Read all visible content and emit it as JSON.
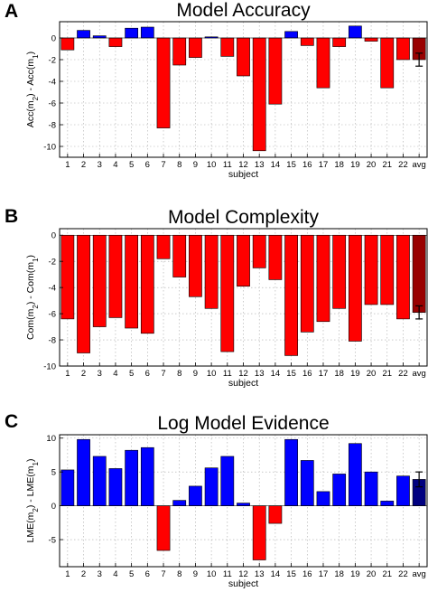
{
  "colors": {
    "positive": "#0000ff",
    "negative": "#ff0000",
    "average": "#000080",
    "average_negative": "#990000",
    "grid": "#aaaaaa"
  },
  "chart_data": [
    {
      "type": "bar",
      "panel_letter": "A",
      "title": "Model Accuracy",
      "xlabel": "subject",
      "ylabel": "Acc(m_2) - Acc(m_1)",
      "categories": [
        "1",
        "2",
        "3",
        "4",
        "5",
        "6",
        "7",
        "8",
        "9",
        "10",
        "11",
        "12",
        "13",
        "14",
        "15",
        "16",
        "17",
        "18",
        "19",
        "20",
        "21",
        "22",
        "avg"
      ],
      "values": [
        -1.1,
        0.7,
        0.2,
        -0.8,
        0.9,
        1.0,
        -8.3,
        -2.5,
        -1.8,
        0.1,
        -1.7,
        -3.5,
        -10.4,
        -6.1,
        0.6,
        -0.7,
        -4.6,
        -0.8,
        1.1,
        -0.3,
        -4.6,
        -2.0,
        -2.0
      ],
      "error": [
        0,
        0,
        0,
        0,
        0,
        0,
        0,
        0,
        0,
        0,
        0,
        0,
        0,
        0,
        0,
        0,
        0,
        0,
        0,
        0,
        0,
        0,
        0.6
      ],
      "ylim": [
        -11,
        1.5
      ],
      "yticks": [
        -10,
        -8,
        -6,
        -4,
        -2,
        0
      ],
      "grid": true
    },
    {
      "type": "bar",
      "panel_letter": "B",
      "title": "Model Complexity",
      "xlabel": "subject",
      "ylabel": "Com(m_2) - Com(m_1)",
      "categories": [
        "1",
        "2",
        "3",
        "4",
        "5",
        "6",
        "7",
        "8",
        "9",
        "10",
        "11",
        "12",
        "13",
        "14",
        "15",
        "16",
        "17",
        "18",
        "19",
        "20",
        "21",
        "22",
        "avg"
      ],
      "values": [
        -6.4,
        -9.0,
        -7.0,
        -6.3,
        -7.1,
        -7.5,
        -1.8,
        -3.2,
        -4.7,
        -5.6,
        -8.9,
        -3.9,
        -2.5,
        -3.4,
        -9.2,
        -7.4,
        -6.6,
        -5.6,
        -8.1,
        -5.3,
        -5.3,
        -6.4,
        -5.9
      ],
      "error": [
        0,
        0,
        0,
        0,
        0,
        0,
        0,
        0,
        0,
        0,
        0,
        0,
        0,
        0,
        0,
        0,
        0,
        0,
        0,
        0,
        0,
        0,
        0.5
      ],
      "ylim": [
        -10,
        0.5
      ],
      "yticks": [
        -10,
        -8,
        -6,
        -4,
        -2,
        0
      ],
      "grid": true
    },
    {
      "type": "bar",
      "panel_letter": "C",
      "title": "Log Model Evidence",
      "xlabel": "subject",
      "ylabel": "LME(m_2) - LME(m_1)",
      "categories": [
        "1",
        "2",
        "3",
        "4",
        "5",
        "6",
        "7",
        "8",
        "9",
        "10",
        "11",
        "12",
        "13",
        "14",
        "15",
        "16",
        "17",
        "18",
        "19",
        "20",
        "21",
        "22",
        "avg"
      ],
      "values": [
        5.3,
        9.8,
        7.3,
        5.5,
        8.2,
        8.6,
        -6.6,
        0.8,
        2.9,
        5.6,
        7.3,
        0.4,
        -8.0,
        -2.6,
        9.8,
        6.7,
        2.1,
        4.7,
        9.2,
        5.0,
        0.7,
        4.4,
        3.9
      ],
      "error": [
        0,
        0,
        0,
        0,
        0,
        0,
        0,
        0,
        0,
        0,
        0,
        0,
        0,
        0,
        0,
        0,
        0,
        0,
        0,
        0,
        0,
        0,
        1.1
      ],
      "ylim": [
        -9,
        10.5
      ],
      "yticks": [
        -5,
        0,
        5,
        10
      ],
      "grid": true
    }
  ]
}
